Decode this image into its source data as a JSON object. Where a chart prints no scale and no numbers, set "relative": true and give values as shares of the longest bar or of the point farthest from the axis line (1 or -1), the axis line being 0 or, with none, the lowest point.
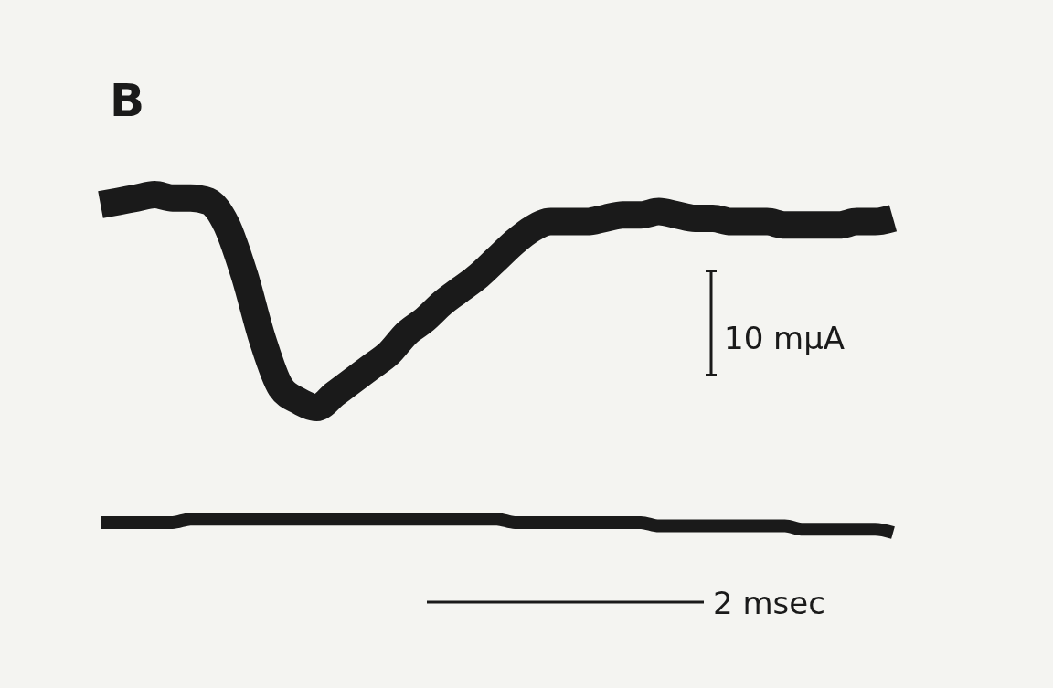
{
  "chart_data": {
    "type": "line",
    "title": "B",
    "relative": true,
    "categories": [
      null,
      null,
      null,
      null,
      null,
      null,
      null,
      null,
      null,
      null,
      null,
      null,
      null,
      null,
      null,
      null,
      null,
      null,
      null,
      null,
      null,
      null,
      null,
      null,
      null,
      null,
      null,
      null,
      null,
      null,
      null,
      null,
      null,
      null,
      null,
      null,
      null,
      null,
      null,
      null,
      null,
      null,
      null,
      null,
      null
    ],
    "series": [
      {
        "color": "#1a1a1a",
        "values": [
          0.97,
          0.98,
          0.99,
          1,
          0.99,
          0.99,
          0.98,
          0.91,
          0.76,
          0.57,
          0.43,
          0.39,
          0.37,
          0.41,
          0.45,
          0.49,
          0.53,
          0.59,
          0.63,
          0.68,
          0.72,
          0.76,
          0.81,
          0.86,
          0.9,
          0.92,
          0.92,
          0.92,
          0.93,
          0.94,
          0.94,
          0.95,
          0.94,
          0.93,
          0.93,
          0.92,
          0.92,
          0.92,
          0.91,
          0.91,
          0.91,
          0.91,
          0.92,
          0.92,
          0.93
        ]
      },
      {
        "color": "#1a1a1a",
        "values": [
          0.03,
          0.03,
          0.03,
          0.03,
          0.03,
          0.04,
          0.04,
          0.04,
          0.04,
          0.04,
          0.04,
          0.04,
          0.04,
          0.04,
          0.04,
          0.04,
          0.04,
          0.04,
          0.04,
          0.04,
          0.04,
          0.04,
          0.04,
          0.03,
          0.03,
          0.03,
          0.03,
          0.03,
          0.03,
          0.03,
          0.03,
          0.02,
          0.02,
          0.02,
          0.02,
          0.02,
          0.02,
          0.02,
          0.02,
          0.01,
          0.01,
          0.01,
          0.01,
          0.01,
          0
        ]
      }
    ],
    "annotations": [
      "10 mμA",
      "2 msec"
    ]
  }
}
